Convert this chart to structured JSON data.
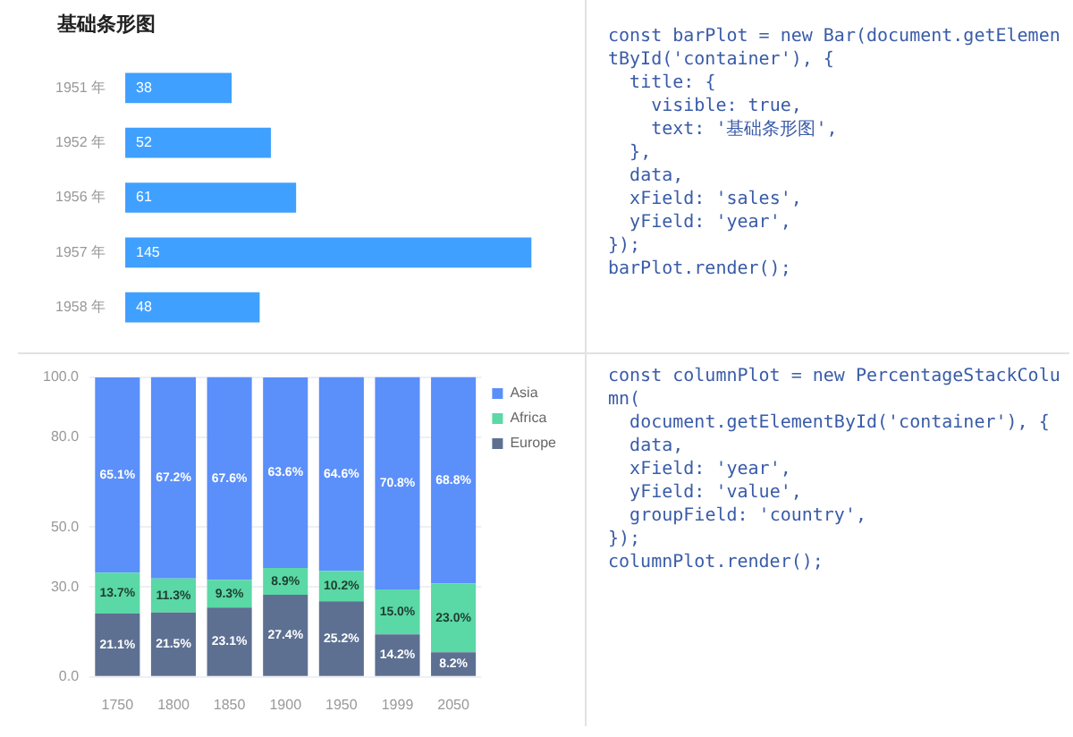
{
  "chart_data": [
    {
      "type": "bar",
      "title": "基础条形图",
      "orientation": "horizontal",
      "categories": [
        "1951 年",
        "1952 年",
        "1956 年",
        "1957 年",
        "1958 年"
      ],
      "values": [
        38,
        52,
        61,
        145,
        48
      ],
      "color": "#3fa0ff",
      "data_labels": true,
      "grid": false,
      "tick_labels": "y"
    },
    {
      "type": "other",
      "annotations": [
        "const barPlot = new Bar(document.getElementById('container'), {",
        "  title: {",
        "    visible: true,",
        "    text: '基础条形图',",
        "  },",
        "  data,",
        "  xField: 'sales',",
        "  yField: 'year',",
        "});",
        "barPlot.render();"
      ]
    },
    {
      "type": "bar",
      "stacked": true,
      "categories": [
        "1750",
        "1800",
        "1850",
        "1900",
        "1950",
        "1999",
        "2050"
      ],
      "ylim": [
        0,
        100
      ],
      "yticks": [
        {
          "value": 0,
          "label": "0.0"
        },
        {
          "value": 30,
          "label": "30.0"
        },
        {
          "value": 50,
          "label": "50.0"
        },
        {
          "value": 80,
          "label": "80.0"
        },
        {
          "value": 100,
          "label": "100.0"
        }
      ],
      "grid": "y",
      "legend": "top right",
      "series": [
        {
          "name": "Europe",
          "color": "#5d7092",
          "values": [
            21.1,
            21.5,
            23.1,
            27.4,
            25.2,
            14.2,
            8.2
          ],
          "value_labels": [
            "21.1%",
            "21.5%",
            "23.1%",
            "27.4%",
            "25.2%",
            "14.2%",
            "8.2%"
          ]
        },
        {
          "name": "Africa",
          "color": "#5ad8a6",
          "values": [
            13.7,
            11.3,
            9.3,
            8.9,
            10.2,
            15.0,
            23.0
          ],
          "value_labels": [
            "13.7%",
            "11.3%",
            "9.3%",
            "8.9%",
            "10.2%",
            "15.0%",
            "23.0%"
          ]
        },
        {
          "name": "Asia",
          "color": "#5b8ff9",
          "values": [
            65.1,
            67.2,
            67.6,
            63.6,
            64.6,
            70.8,
            68.8
          ],
          "value_labels": [
            "65.1%",
            "67.2%",
            "67.6%",
            "63.6%",
            "64.6%",
            "70.8%",
            "68.8%"
          ]
        }
      ]
    },
    {
      "type": "other",
      "annotations": [
        "const columnPlot = new PercentageStackColumn(",
        "  document.getElementById('container'), {",
        "  data,",
        "  xField: 'year',",
        "  yField: 'value',",
        "  groupField: 'country',",
        "});",
        "columnPlot.render();"
      ]
    }
  ]
}
